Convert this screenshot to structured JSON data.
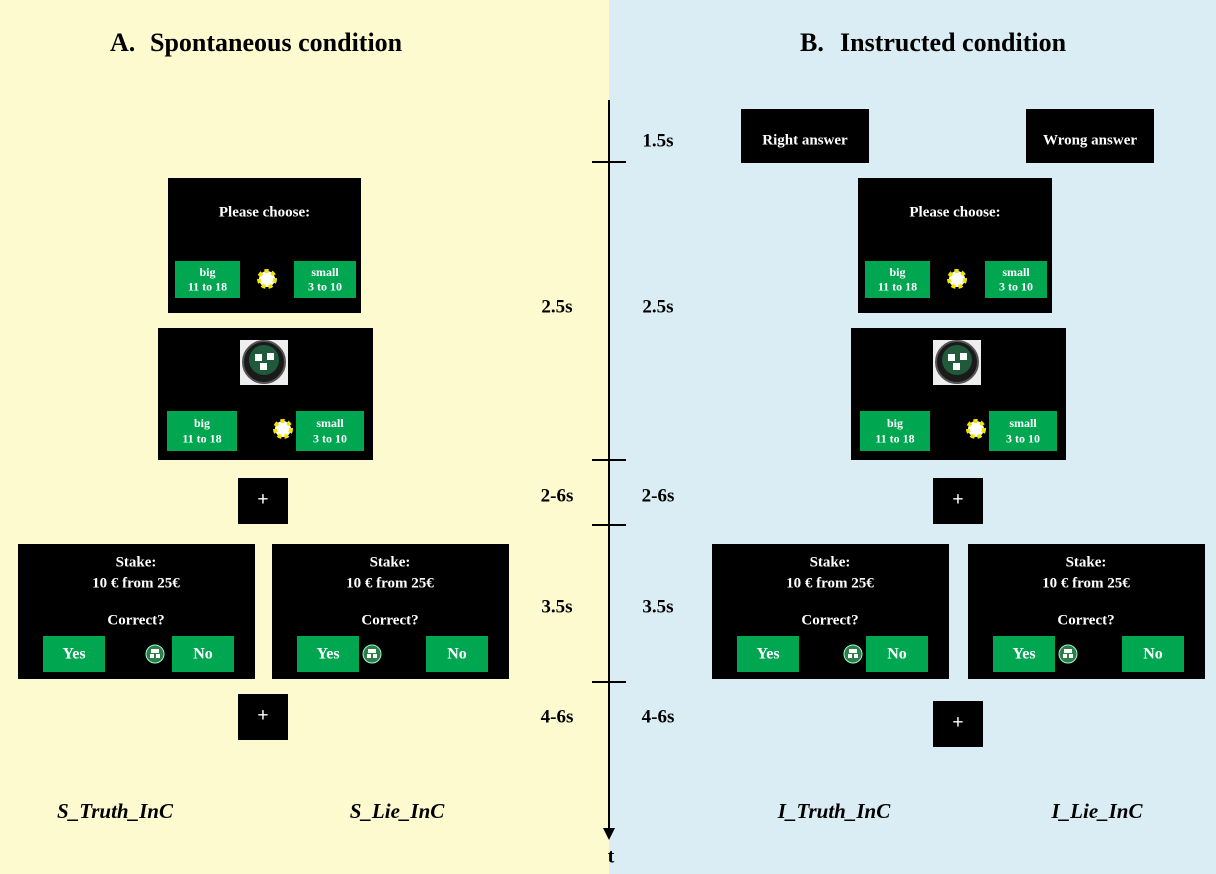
{
  "panels": [
    {
      "letter": "A.",
      "title": "Spontaneous condition",
      "choice_screen": {
        "prompt": "Please choose:",
        "options": [
          {
            "name": "big",
            "range": "11 to 18"
          },
          {
            "name": "small",
            "range": "3 to 10"
          }
        ]
      },
      "outcome_screen": {
        "options": [
          {
            "name": "big",
            "range": "11 to 18"
          },
          {
            "name": "small",
            "range": "3 to 10"
          }
        ]
      },
      "fixation_1": "+",
      "stake_screens": [
        {
          "stake_label": "Stake:",
          "stake_amount": "10 € from 25€",
          "question": "Correct?",
          "yes": "Yes",
          "no": "No"
        },
        {
          "stake_label": "Stake:",
          "stake_amount": "10 € from 25€",
          "question": "Correct?",
          "yes": "Yes",
          "no": "No"
        }
      ],
      "fixation_2": "+",
      "conditions": [
        "S_Truth_InC",
        "S_Lie_InC"
      ]
    },
    {
      "letter": "B.",
      "title": "Instructed condition",
      "cues": [
        "Right answer",
        "Wrong answer"
      ],
      "choice_screen": {
        "prompt": "Please choose:",
        "options": [
          {
            "name": "big",
            "range": "11 to 18"
          },
          {
            "name": "small",
            "range": "3 to 10"
          }
        ]
      },
      "outcome_screen": {
        "options": [
          {
            "name": "big",
            "range": "11 to 18"
          },
          {
            "name": "small",
            "range": "3 to 10"
          }
        ]
      },
      "fixation_1": "+",
      "stake_screens": [
        {
          "stake_label": "Stake:",
          "stake_amount": "10 € from 25€",
          "question": "Correct?",
          "yes": "Yes",
          "no": "No"
        },
        {
          "stake_label": "Stake:",
          "stake_amount": "10 € from 25€",
          "question": "Correct?",
          "yes": "Yes",
          "no": "No"
        }
      ],
      "fixation_2": "+",
      "conditions": [
        "I_Truth_InC",
        "I_Lie_InC"
      ]
    }
  ],
  "timeline": {
    "axis_label": "t",
    "left_durations": [
      "2.5s",
      "2-6s",
      "3.5s",
      "4-6s"
    ],
    "right_durations": [
      "1.5s",
      "2.5s",
      "2-6s",
      "3.5s",
      "4-6s"
    ]
  }
}
